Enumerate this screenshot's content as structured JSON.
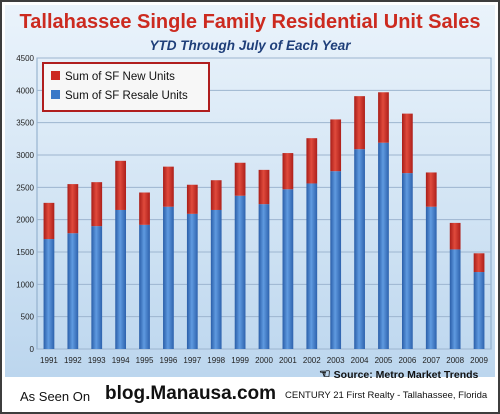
{
  "chart_data": {
    "type": "bar",
    "stacked": true,
    "title": "Tallahassee Single Family Residential Unit Sales",
    "subtitle": "YTD Through July of Each Year",
    "categories": [
      "1991",
      "1992",
      "1993",
      "1994",
      "1995",
      "1996",
      "1997",
      "1998",
      "1999",
      "2000",
      "2001",
      "2002",
      "2003",
      "2004",
      "2005",
      "2006",
      "2007",
      "2008",
      "2009"
    ],
    "series": [
      {
        "name": "Sum of SF Resale Units",
        "color": "#3a78c8",
        "values": [
          1700,
          1790,
          1900,
          2150,
          1920,
          2200,
          2090,
          2150,
          2370,
          2240,
          2470,
          2560,
          2750,
          3090,
          3190,
          2720,
          2200,
          1540,
          1190
        ]
      },
      {
        "name": "Sum of SF New Units",
        "color": "#cc2a22",
        "values": [
          560,
          760,
          680,
          760,
          500,
          620,
          450,
          460,
          510,
          530,
          560,
          700,
          800,
          820,
          780,
          920,
          530,
          410,
          290
        ]
      }
    ],
    "legend_order": [
      "Sum of SF New Units",
      "Sum of SF Resale Units"
    ],
    "y_ticks": [
      "0",
      "500",
      "1000",
      "1500",
      "2000",
      "2500",
      "3000",
      "3500",
      "4000",
      "4500"
    ],
    "ylim": [
      0,
      4500
    ],
    "grid": true,
    "legend_position": "top-left"
  },
  "source_label": "Source:  Metro Market Trends",
  "source_icon": "pointing-hand-icon",
  "footer": {
    "as_seen_on": "As Seen On",
    "blog": "blog.Manausa.com",
    "brokerage": "CENTURY 21 First Realty - Tallahassee, Florida"
  }
}
